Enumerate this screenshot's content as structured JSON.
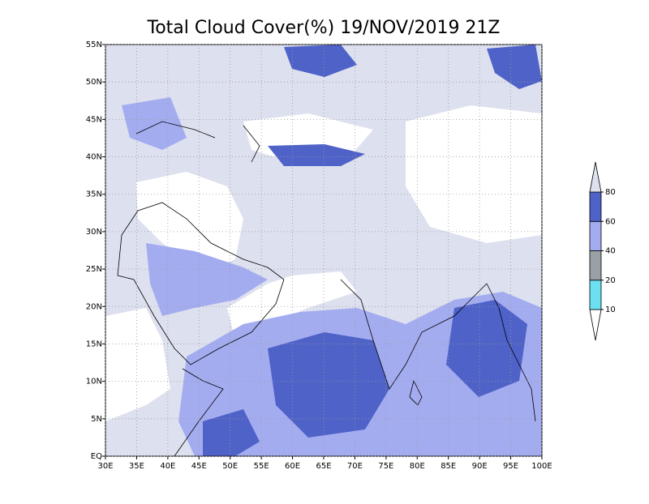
{
  "chart_data": {
    "type": "map",
    "title": "Total Cloud Cover(%) 19/NOV/2019 21Z",
    "xlim": [
      30,
      100
    ],
    "ylim": [
      0,
      55
    ],
    "xticks": [
      {
        "value": 30,
        "label": "30E"
      },
      {
        "value": 35,
        "label": "35E"
      },
      {
        "value": 40,
        "label": "40E"
      },
      {
        "value": 45,
        "label": "45E"
      },
      {
        "value": 50,
        "label": "50E"
      },
      {
        "value": 55,
        "label": "55E"
      },
      {
        "value": 60,
        "label": "60E"
      },
      {
        "value": 65,
        "label": "65E"
      },
      {
        "value": 70,
        "label": "70E"
      },
      {
        "value": 75,
        "label": "75E"
      },
      {
        "value": 80,
        "label": "80E"
      },
      {
        "value": 85,
        "label": "85E"
      },
      {
        "value": 90,
        "label": "90E"
      },
      {
        "value": 95,
        "label": "95E"
      },
      {
        "value": 100,
        "label": "100E"
      }
    ],
    "yticks": [
      {
        "value": 0,
        "label": "EQ"
      },
      {
        "value": 5,
        "label": "5N"
      },
      {
        "value": 10,
        "label": "10N"
      },
      {
        "value": 15,
        "label": "15N"
      },
      {
        "value": 20,
        "label": "20N"
      },
      {
        "value": 25,
        "label": "25N"
      },
      {
        "value": 30,
        "label": "30N"
      },
      {
        "value": 35,
        "label": "35N"
      },
      {
        "value": 40,
        "label": "40N"
      },
      {
        "value": 45,
        "label": "45N"
      },
      {
        "value": 50,
        "label": "50N"
      },
      {
        "value": 55,
        "label": "55N"
      }
    ],
    "grid": true,
    "colorbar": {
      "levels": [
        10,
        20,
        40,
        60,
        80
      ],
      "colors": [
        "#ffffff",
        "#6ae0f0",
        "#9aa0a6",
        "#a4acf0",
        "#4f62c8",
        "#dde0ee"
      ]
    }
  }
}
